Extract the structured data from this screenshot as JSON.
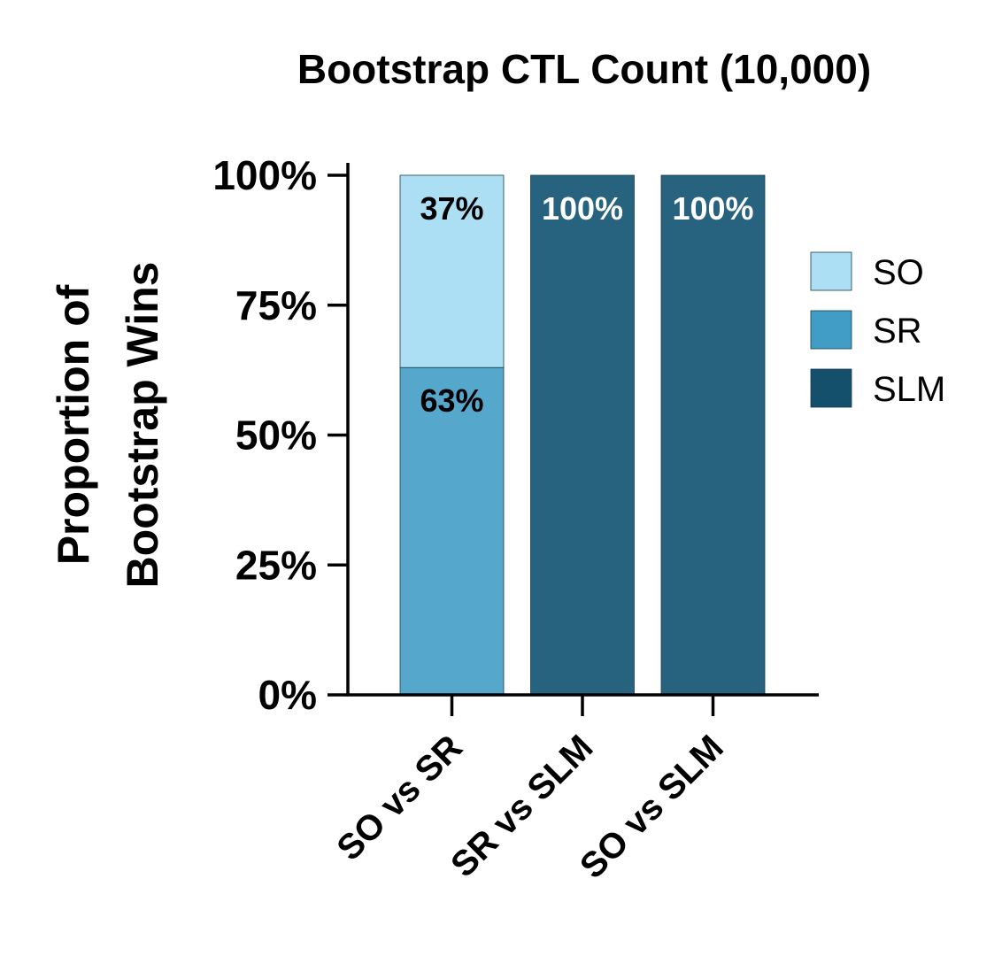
{
  "chart_data": {
    "type": "bar",
    "stacked": true,
    "title": "Bootstrap CTL Count (10,000)",
    "ylabel_lines": [
      "Proportion of",
      "Bootstrap Wins"
    ],
    "xlabel": "",
    "ylim": [
      0,
      100
    ],
    "yticks": [
      0,
      25,
      50,
      75,
      100
    ],
    "ytick_labels": [
      "0%",
      "25%",
      "50%",
      "75%",
      "100%"
    ],
    "categories": [
      "SO vs SR",
      "SR vs SLM",
      "SO vs SLM"
    ],
    "series": [
      {
        "name": "SR",
        "color": "#55a7cc",
        "values": [
          63,
          0,
          0
        ],
        "labels": [
          "63%",
          "",
          ""
        ],
        "label_color": "#000000"
      },
      {
        "name": "SO",
        "color": "#addff4",
        "values": [
          37,
          0,
          0
        ],
        "labels": [
          "37%",
          "",
          ""
        ],
        "label_color": "#000000"
      },
      {
        "name": "SLM",
        "color": "#27637e",
        "values": [
          0,
          100,
          100
        ],
        "labels": [
          "",
          "100%",
          "100%"
        ],
        "label_color": "#ffffff"
      }
    ],
    "legend": {
      "position": "right",
      "entries": [
        {
          "name": "SO",
          "color": "#addff4"
        },
        {
          "name": "SR",
          "color": "#429dc6"
        },
        {
          "name": "SLM",
          "color": "#144f6c"
        }
      ]
    },
    "grid": false
  }
}
